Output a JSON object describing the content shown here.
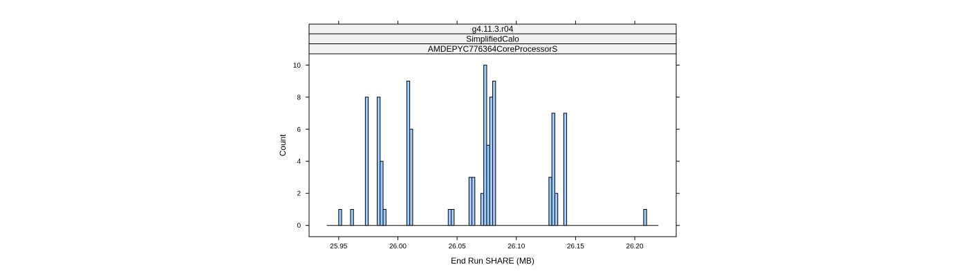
{
  "chart_data": {
    "type": "bar",
    "strips": [
      "g4.11.3.r04",
      "SimplifiedCalo",
      "AMDEPYC776364CoreProcessorS"
    ],
    "xlabel": "End Run SHARE (MB)",
    "ylabel": "Count",
    "xlim": [
      25.925,
      26.235
    ],
    "ylim": [
      -0.7,
      10.7
    ],
    "x_ticks": [
      25.95,
      26.0,
      26.05,
      26.1,
      26.15,
      26.2
    ],
    "x_tick_labels": [
      "25.95",
      "26.00",
      "26.05",
      "26.10",
      "26.15",
      "26.20"
    ],
    "y_ticks": [
      0,
      2,
      4,
      6,
      8,
      10
    ],
    "y_tick_labels": [
      "0",
      "2",
      "4",
      "6",
      "8",
      "10"
    ],
    "bin_width": 0.0025,
    "baseline_range": [
      25.94,
      26.22
    ],
    "bars": [
      {
        "x": 25.95,
        "count": 1
      },
      {
        "x": 25.96,
        "count": 1
      },
      {
        "x": 25.9725,
        "count": 8
      },
      {
        "x": 25.9825,
        "count": 8
      },
      {
        "x": 25.985,
        "count": 4
      },
      {
        "x": 25.9875,
        "count": 1
      },
      {
        "x": 26.0075,
        "count": 9
      },
      {
        "x": 26.01,
        "count": 6
      },
      {
        "x": 26.0425,
        "count": 1
      },
      {
        "x": 26.045,
        "count": 1
      },
      {
        "x": 26.06,
        "count": 3
      },
      {
        "x": 26.0625,
        "count": 3
      },
      {
        "x": 26.07,
        "count": 2
      },
      {
        "x": 26.0725,
        "count": 10
      },
      {
        "x": 26.075,
        "count": 5
      },
      {
        "x": 26.0775,
        "count": 8
      },
      {
        "x": 26.08,
        "count": 9
      },
      {
        "x": 26.1275,
        "count": 3
      },
      {
        "x": 26.13,
        "count": 7
      },
      {
        "x": 26.1325,
        "count": 2
      },
      {
        "x": 26.14,
        "count": 7
      },
      {
        "x": 26.2075,
        "count": 1
      }
    ],
    "colors": {
      "bar_fill": "#99ccff",
      "bar_stroke": "#000000",
      "strip_bg": "#f2f2f2"
    },
    "grid": false,
    "legend": "none"
  }
}
